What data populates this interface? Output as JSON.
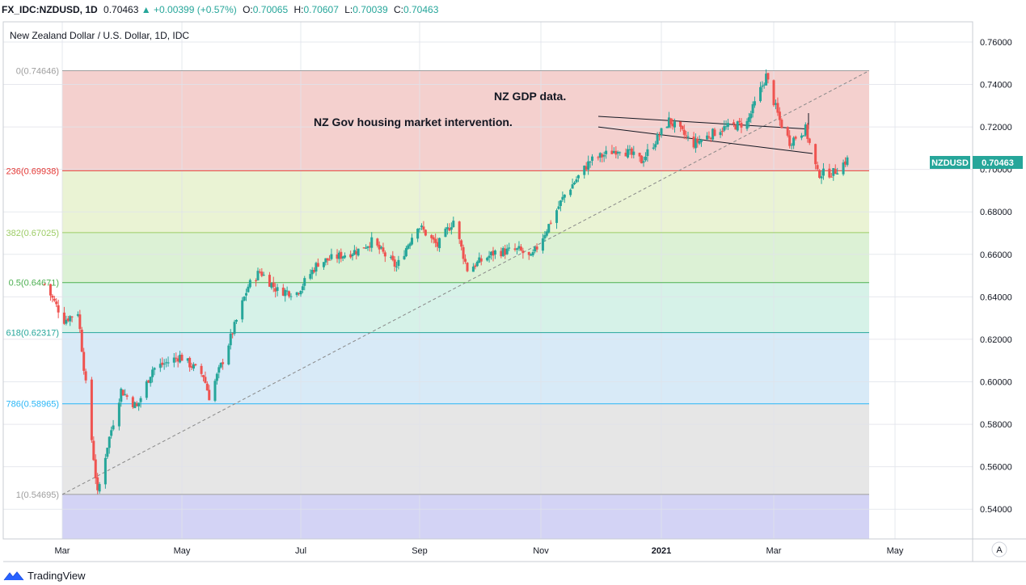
{
  "header": {
    "symbol": "FX_IDC:NZDUSD, 1D",
    "last": "0.70463",
    "triangle": "▲",
    "change": "+0.00399 (+0.57%)",
    "open_label": "O:",
    "open": "0.70065",
    "high_label": "H:",
    "high": "0.70607",
    "low_label": "L:",
    "low": "0.70039",
    "close_label": "C:",
    "close": "0.70463"
  },
  "footer": {
    "brand": "TradingView"
  },
  "chart_data": {
    "type": "candlestick",
    "title": "New Zealand Dollar / U.S. Dollar, 1D, IDC",
    "ylim": [
      0.526,
      0.7695
    ],
    "y_ticks": [
      "0.76000",
      "0.74000",
      "0.72000",
      "0.70000",
      "0.68000",
      "0.66000",
      "0.64000",
      "0.62000",
      "0.60000",
      "0.58000",
      "0.56000",
      "0.54000"
    ],
    "x_ticks": [
      "Mar",
      "May",
      "Jul",
      "Sep",
      "Nov",
      "2021",
      "Mar",
      "May"
    ],
    "last_price_label": "NZDUSD",
    "last_price": "0.70463",
    "scale_mode": "A",
    "fib_levels": [
      {
        "label": "0(0.74646)",
        "value": 0.74646,
        "color": "#9e9e9e"
      },
      {
        "label": "236(0.69938)",
        "value": 0.69938,
        "color": "#e53935"
      },
      {
        "label": "382(0.67025)",
        "value": 0.67025,
        "color": "#9ccc65"
      },
      {
        "label": "0.5(0.64671)",
        "value": 0.64671,
        "color": "#4caf50"
      },
      {
        "label": "618(0.62317)",
        "value": 0.62317,
        "color": "#26a69a"
      },
      {
        "label": "786(0.58965)",
        "value": 0.58965,
        "color": "#29b6f6"
      },
      {
        "label": "1(0.54695)",
        "value": 0.54695,
        "color": "#9e9e9e"
      }
    ],
    "fib_bands": [
      "#f4d0ce",
      "#eaf3d4",
      "#dcf1d5",
      "#d6f2e8",
      "#d8eaf7",
      "#e6e6e6",
      "#d3d3f5"
    ],
    "annotations": [
      "NZ GDP data.",
      "NZ Gov housing market intervention."
    ],
    "key_points": [
      {
        "x": "2020-02-21",
        "y": 0.646
      },
      {
        "x": "2020-03-02",
        "y": 0.629
      },
      {
        "x": "2020-03-09",
        "y": 0.633
      },
      {
        "x": "2020-03-19",
        "y": 0.547
      },
      {
        "x": "2020-03-24",
        "y": 0.57
      },
      {
        "x": "2020-03-31",
        "y": 0.596
      },
      {
        "x": "2020-04-08",
        "y": 0.588
      },
      {
        "x": "2020-04-16",
        "y": 0.606
      },
      {
        "x": "2020-04-30",
        "y": 0.612
      },
      {
        "x": "2020-05-12",
        "y": 0.603
      },
      {
        "x": "2020-05-15",
        "y": 0.593
      },
      {
        "x": "2020-05-22",
        "y": 0.61
      },
      {
        "x": "2020-06-04",
        "y": 0.645
      },
      {
        "x": "2020-06-10",
        "y": 0.652
      },
      {
        "x": "2020-06-19",
        "y": 0.643
      },
      {
        "x": "2020-06-29",
        "y": 0.642
      },
      {
        "x": "2020-07-10",
        "y": 0.656
      },
      {
        "x": "2020-07-31",
        "y": 0.662
      },
      {
        "x": "2020-08-07",
        "y": 0.666
      },
      {
        "x": "2020-08-20",
        "y": 0.654
      },
      {
        "x": "2020-08-31",
        "y": 0.674
      },
      {
        "x": "2020-09-10",
        "y": 0.664
      },
      {
        "x": "2020-09-18",
        "y": 0.676
      },
      {
        "x": "2020-09-25",
        "y": 0.653
      },
      {
        "x": "2020-10-09",
        "y": 0.661
      },
      {
        "x": "2020-10-21",
        "y": 0.662
      },
      {
        "x": "2020-10-27",
        "y": 0.658
      },
      {
        "x": "2020-11-04",
        "y": 0.672
      },
      {
        "x": "2020-11-13",
        "y": 0.688
      },
      {
        "x": "2020-11-26",
        "y": 0.704
      },
      {
        "x": "2020-12-11",
        "y": 0.71
      },
      {
        "x": "2020-12-22",
        "y": 0.704
      },
      {
        "x": "2021-01-05",
        "y": 0.723
      },
      {
        "x": "2021-01-18",
        "y": 0.712
      },
      {
        "x": "2021-02-01",
        "y": 0.719
      },
      {
        "x": "2021-02-15",
        "y": 0.722
      },
      {
        "x": "2021-02-25",
        "y": 0.744
      },
      {
        "x": "2021-03-04",
        "y": 0.723
      },
      {
        "x": "2021-03-09",
        "y": 0.713
      },
      {
        "x": "2021-03-17",
        "y": 0.719
      },
      {
        "x": "2021-03-23",
        "y": 0.698
      },
      {
        "x": "2021-03-31",
        "y": 0.6985
      },
      {
        "x": "2021-04-07",
        "y": 0.7046
      }
    ]
  }
}
